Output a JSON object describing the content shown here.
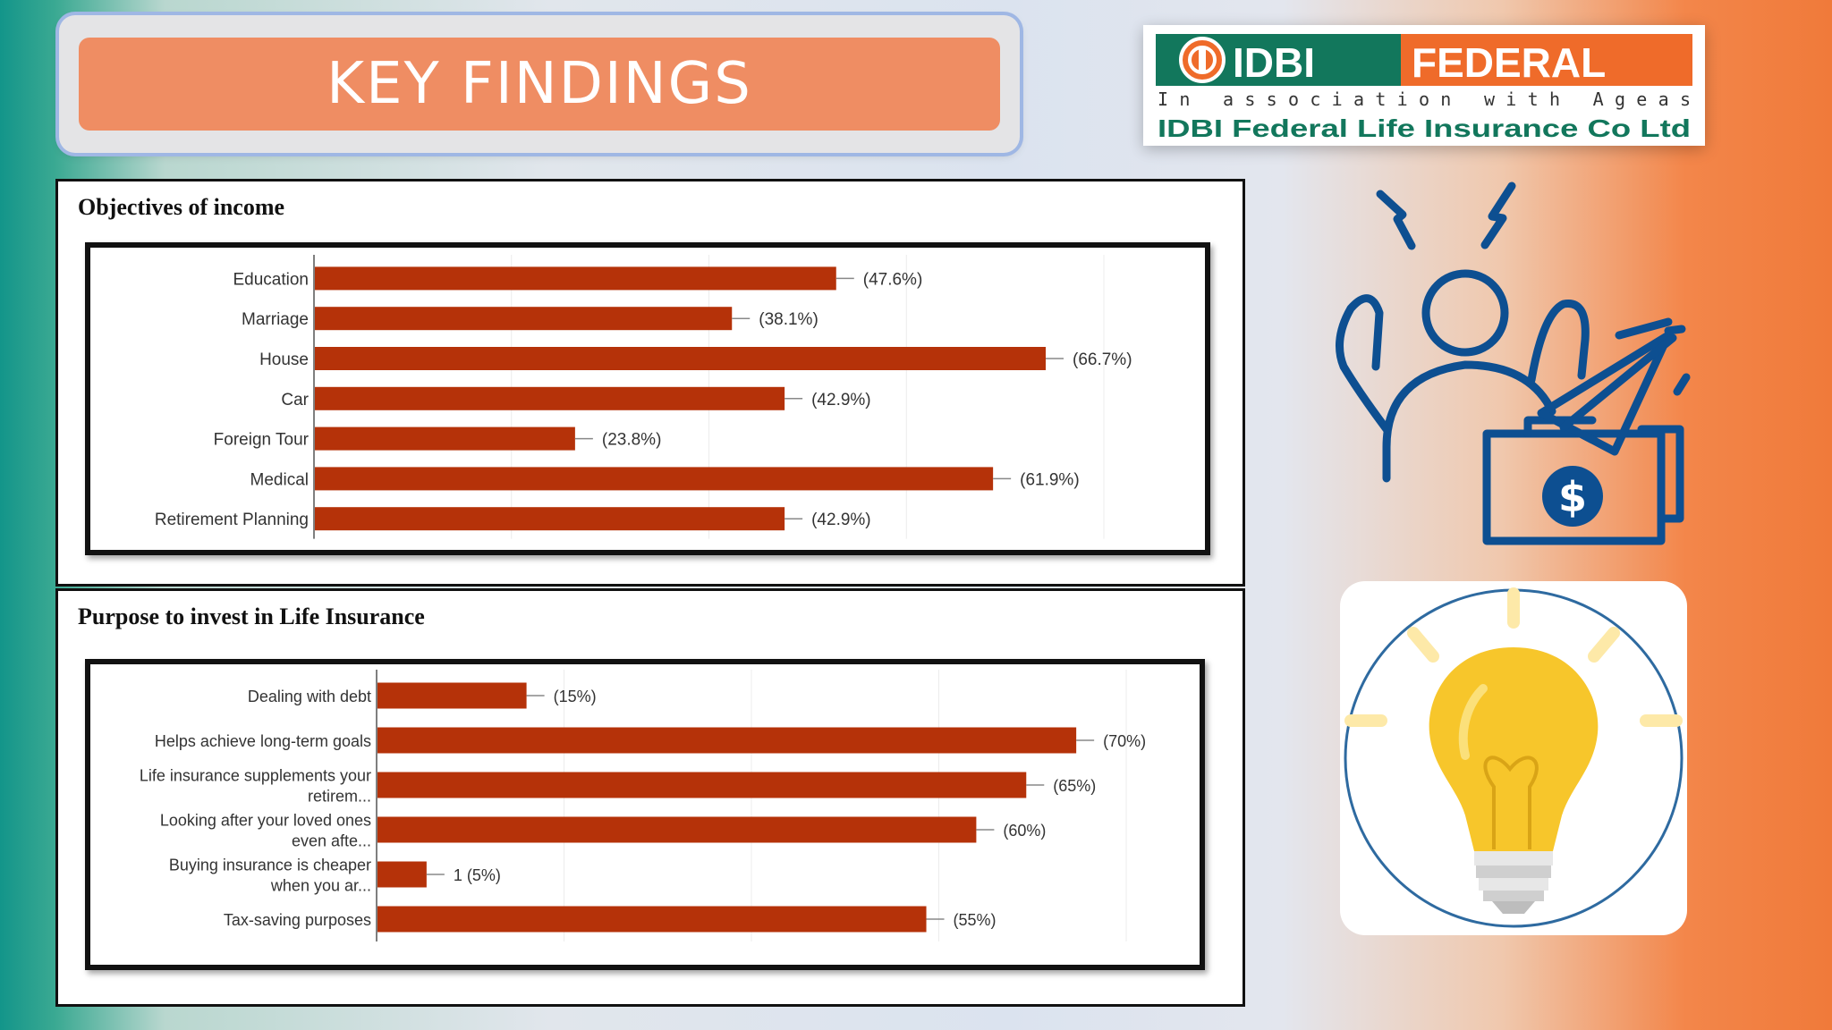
{
  "slide": {
    "title": "KEY FINDINGS"
  },
  "logo": {
    "brand_left": "IDBI",
    "brand_right": "FEDERAL",
    "tagline": "In association with Ageas",
    "company": "IDBI Federal Life Insurance Co Ltd",
    "colors": {
      "green": "#12775c",
      "orange": "#ef6b2a"
    }
  },
  "illustrations": {
    "stressed_person_icon": "stressed-person-with-money-icon",
    "lightbulb_icon": "lightbulb-icon"
  },
  "chart_data": [
    {
      "type": "bar",
      "orientation": "horizontal",
      "title": "Objectives of income",
      "categories": [
        "Education",
        "Marriage",
        "House",
        "Car",
        "Foreign Tour",
        "Medical",
        "Retirement Planning"
      ],
      "values": [
        47.6,
        38.1,
        66.7,
        42.9,
        23.8,
        61.9,
        42.9
      ],
      "data_labels": [
        "(47.6%)",
        "(38.1%)",
        "(66.7%)",
        "(42.9%)",
        "(23.8%)",
        "(61.9%)",
        "(42.9%)"
      ],
      "xlim": [
        0,
        72
      ],
      "grid": true,
      "color": "#b53209"
    },
    {
      "type": "bar",
      "orientation": "horizontal",
      "title": "Purpose to invest in Life Insurance",
      "categories": [
        [
          "Dealing with debt"
        ],
        [
          "Helps achieve long-term goals"
        ],
        [
          "Life insurance supplements your",
          "retirem..."
        ],
        [
          "Looking after your loved ones",
          "even afte..."
        ],
        [
          "Buying insurance is cheaper",
          "when you ar..."
        ],
        [
          "Tax-saving purposes"
        ]
      ],
      "values": [
        15,
        70,
        65,
        60,
        5,
        55
      ],
      "data_labels": [
        "(15%)",
        "(70%)",
        "(65%)",
        "(60%)",
        "1 (5%)",
        "(55%)"
      ],
      "xlim": [
        0,
        75
      ],
      "grid": true,
      "color": "#b53209"
    }
  ]
}
